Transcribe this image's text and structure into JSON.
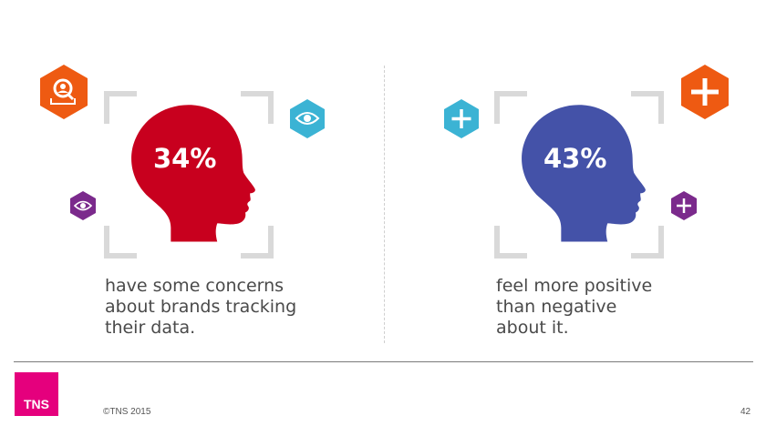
{
  "left_panel": {
    "percentage": "34%",
    "statement": "have some concerns\nabout brands tracking\ntheir data.",
    "head_color": "#c8001e",
    "icons": [
      "person-search-icon",
      "eye-icon",
      "eye-icon"
    ]
  },
  "right_panel": {
    "percentage": "43%",
    "statement": "feel more positive\nthan negative\nabout it.",
    "head_color": "#4452a8",
    "icons": [
      "plus-icon",
      "plus-icon",
      "plus-icon"
    ]
  },
  "colors": {
    "orange": "#ee5a12",
    "cyan": "#3bb3d4",
    "purple": "#7b2a8c",
    "bracket": "#d9d9d9",
    "brand": "#e5007d"
  },
  "footer": {
    "logo_text": "TNS",
    "copyright": "©TNS 2015",
    "page_number": "42"
  }
}
